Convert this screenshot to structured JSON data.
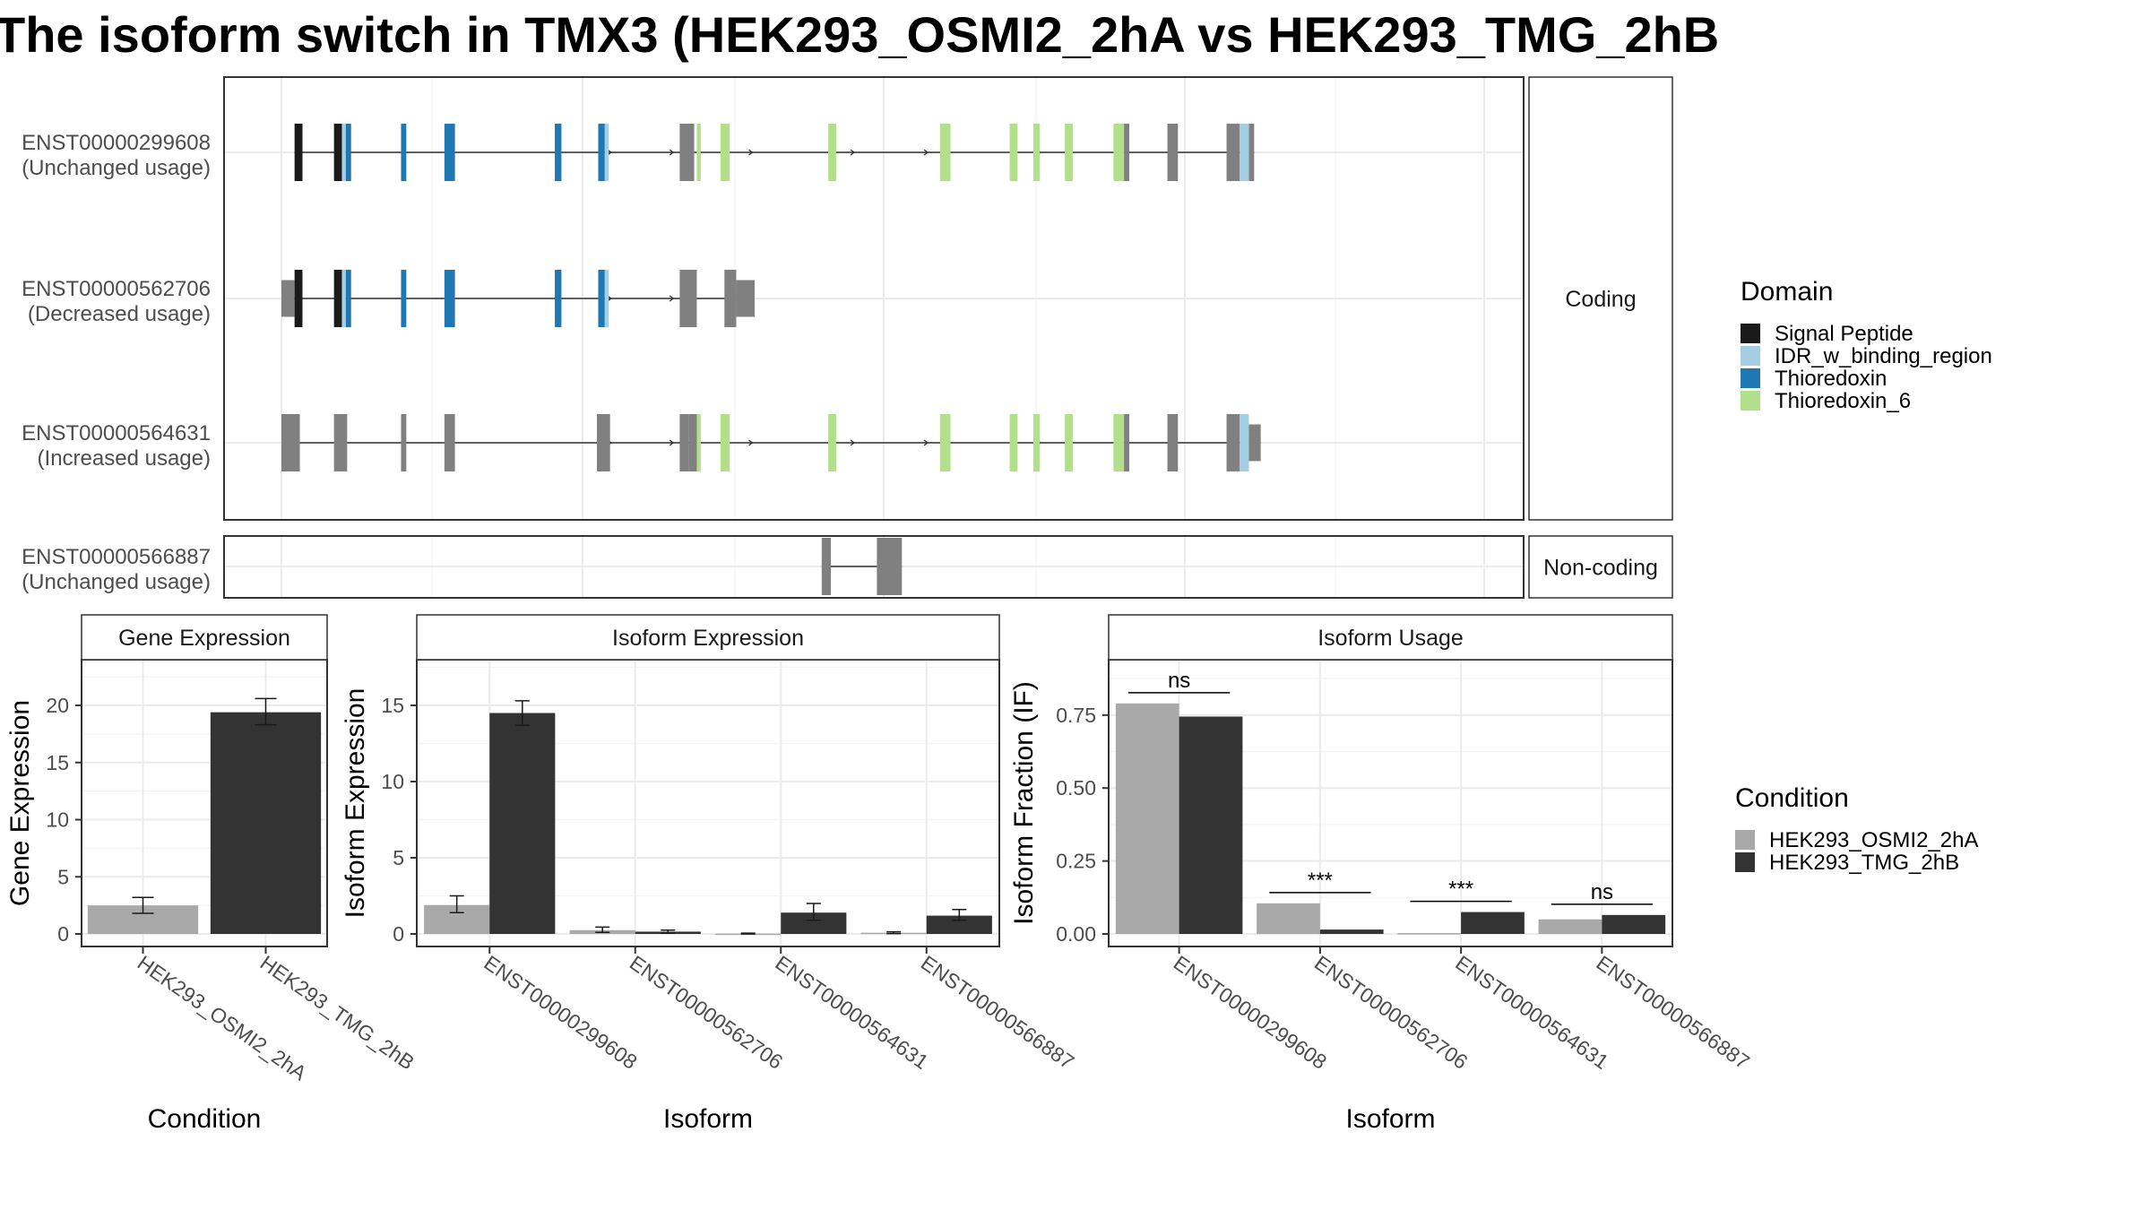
{
  "title": "The isoform switch in TMX3 (HEK293_OSMI2_2hA vs HEK293_TMG_2hB",
  "structure": {
    "x_range": [
      0,
      900
    ],
    "groups": [
      {
        "name": "Coding",
        "isoforms": [
          {
            "id": "ENST00000299608",
            "usage": "(Unchanged usage)",
            "exons": [
              [
                0,
                10,
                "utr"
              ],
              [
                10,
                40,
                "cds"
              ],
              [
                40,
                92,
                "cds"
              ],
              [
                92,
                173,
                "cds"
              ],
              [
                173,
                217,
                "cds"
              ],
              [
                217,
                302,
                "cds"
              ],
              [
                302,
                337,
                "cds"
              ],
              [
                337,
                368,
                "cds"
              ],
              [
                368,
                375,
                "cds"
              ],
              [
                375,
                401,
                "cds"
              ],
              [
                401,
                413,
                "cds"
              ],
              [
                413,
                468,
                "cds"
              ],
              [
                468,
                560,
                "cds"
              ],
              [
                560,
                602,
                "cds"
              ],
              [
                602,
                618,
                "cds"
              ],
              [
                618,
                636,
                "cds"
              ],
              [
                636,
                682,
                "cds"
              ],
              [
                682,
                708,
                "cds"
              ],
              [
                708,
                723,
                "cds"
              ],
              [
                723,
                773,
                "cds"
              ],
              [
                773,
                800,
                "cds"
              ],
              [
                800,
                854,
                "utr"
              ]
            ],
            "marks": [
              [
                10,
                16,
                "black"
              ],
              [
                40,
                46,
                "black"
              ],
              [
                46,
                49,
                "lightblue"
              ],
              [
                49,
                53,
                "blue"
              ],
              [
                91,
                95,
                "blue"
              ],
              [
                124,
                132,
                "blue"
              ],
              [
                208,
                213,
                "blue"
              ],
              [
                241,
                246,
                "blue"
              ],
              [
                246,
                249,
                "lightblue"
              ],
              [
                303,
                314,
                "gray"
              ],
              [
                316,
                319,
                "green"
              ],
              [
                334,
                341,
                "green"
              ],
              [
                416,
                422,
                "green"
              ],
              [
                501,
                509,
                "green"
              ],
              [
                554,
                560,
                "green"
              ],
              [
                572,
                577,
                "green"
              ],
              [
                596,
                602,
                "green"
              ],
              [
                633,
                641,
                "green"
              ],
              [
                641,
                645,
                "gray"
              ],
              [
                674,
                682,
                "gray"
              ],
              [
                719,
                729,
                "gray"
              ],
              [
                729,
                736,
                "lightblue"
              ],
              [
                736,
                740,
                "gray"
              ]
            ]
          },
          {
            "id": "ENST00000562706",
            "usage": "(Decreased usage)",
            "exons": [],
            "marks": [
              [
                0,
                10,
                "utr"
              ],
              [
                10,
                16,
                "black"
              ],
              [
                40,
                46,
                "black"
              ],
              [
                46,
                49,
                "lightblue"
              ],
              [
                49,
                53,
                "blue"
              ],
              [
                91,
                95,
                "blue"
              ],
              [
                124,
                132,
                "blue"
              ],
              [
                208,
                213,
                "blue"
              ],
              [
                241,
                246,
                "blue"
              ],
              [
                246,
                249,
                "lightblue"
              ],
              [
                303,
                316,
                "gray"
              ],
              [
                337,
                346,
                "gray"
              ],
              [
                346,
                360,
                "utr"
              ]
            ]
          },
          {
            "id": "ENST00000564631",
            "usage": "(Increased usage)",
            "exons": [],
            "marks": [
              [
                0,
                14,
                "gray"
              ],
              [
                40,
                50,
                "gray"
              ],
              [
                91,
                95,
                "gray"
              ],
              [
                124,
                132,
                "gray"
              ],
              [
                240,
                250,
                "gray"
              ],
              [
                303,
                310,
                "gray"
              ],
              [
                310,
                316,
                "gray"
              ],
              [
                316,
                319,
                "green"
              ],
              [
                334,
                341,
                "green"
              ],
              [
                416,
                422,
                "green"
              ],
              [
                501,
                509,
                "green"
              ],
              [
                554,
                560,
                "green"
              ],
              [
                572,
                577,
                "green"
              ],
              [
                596,
                602,
                "green"
              ],
              [
                633,
                641,
                "green"
              ],
              [
                641,
                645,
                "gray"
              ],
              [
                674,
                682,
                "gray"
              ],
              [
                719,
                729,
                "gray"
              ],
              [
                729,
                736,
                "lightblue"
              ],
              [
                736,
                745,
                "utr"
              ]
            ]
          }
        ]
      },
      {
        "name": "Non-coding",
        "isoforms": [
          {
            "id": "ENST00000566887",
            "usage": "(Unchanged usage)",
            "exons": [],
            "marks": [
              [
                411,
                418,
                "gray"
              ],
              [
                453,
                472,
                "gray"
              ]
            ]
          }
        ]
      }
    ]
  },
  "domain_legend": {
    "title": "Domain",
    "items": [
      {
        "label": "Signal Peptide",
        "color": "#1a1a1a"
      },
      {
        "label": "IDR_w_binding_region",
        "color": "#a6cee3"
      },
      {
        "label": "Thioredoxin",
        "color": "#1f78b4"
      },
      {
        "label": "Thioredoxin_6",
        "color": "#b2df8a"
      }
    ]
  },
  "condition_legend": {
    "title": "Condition",
    "items": [
      {
        "label": "HEK293_OSMI2_2hA",
        "color": "#a9a9a9"
      },
      {
        "label": "HEK293_TMG_2hB",
        "color": "#333333"
      }
    ]
  },
  "chart_data": [
    {
      "type": "bar",
      "title": "Gene Expression",
      "xlabel": "Condition",
      "ylabel": "Gene Expression",
      "ylim": [
        0,
        24
      ],
      "yticks": [
        0,
        5,
        10,
        15,
        20
      ],
      "categories": [
        "HEK293_OSMI2_2hA",
        "HEK293_TMG_2hB"
      ],
      "values": [
        2.5,
        19.4
      ],
      "errors": [
        [
          1.8,
          3.2
        ],
        [
          18.3,
          20.6
        ]
      ]
    },
    {
      "type": "bar",
      "title": "Isoform Expression",
      "xlabel": "Isoform",
      "ylabel": "Isoform Expression",
      "ylim": [
        0,
        18
      ],
      "yticks": [
        0,
        5,
        10,
        15
      ],
      "categories": [
        "ENST00000299608",
        "ENST00000562706",
        "ENST00000564631",
        "ENST00000566887"
      ],
      "series": [
        {
          "name": "HEK293_OSMI2_2hA",
          "values": [
            1.9,
            0.25,
            0.02,
            0.08
          ],
          "errors": [
            [
              1.4,
              2.5
            ],
            [
              0.1,
              0.45
            ],
            [
              0.0,
              0.05
            ],
            [
              0.02,
              0.14
            ]
          ]
        },
        {
          "name": "HEK293_TMG_2hB",
          "values": [
            14.5,
            0.15,
            1.4,
            1.2
          ],
          "errors": [
            [
              13.7,
              15.3
            ],
            [
              0.05,
              0.25
            ],
            [
              0.9,
              2.0
            ],
            [
              0.9,
              1.6
            ]
          ]
        }
      ]
    },
    {
      "type": "bar",
      "title": "Isoform Usage",
      "xlabel": "Isoform",
      "ylabel": "Isoform Fraction (IF)",
      "ylim": [
        0,
        0.94
      ],
      "yticks": [
        0.0,
        0.25,
        0.5,
        0.75
      ],
      "yticklabels": [
        "0.00",
        "0.25",
        "0.50",
        "0.75"
      ],
      "categories": [
        "ENST00000299608",
        "ENST00000562706",
        "ENST00000564631",
        "ENST00000566887"
      ],
      "series": [
        {
          "name": "HEK293_OSMI2_2hA",
          "values": [
            0.79,
            0.105,
            0.003,
            0.05
          ]
        },
        {
          "name": "HEK293_TMG_2hB",
          "values": [
            0.745,
            0.015,
            0.075,
            0.065
          ]
        }
      ],
      "significance": [
        "ns",
        "***",
        "***",
        "ns"
      ]
    }
  ]
}
